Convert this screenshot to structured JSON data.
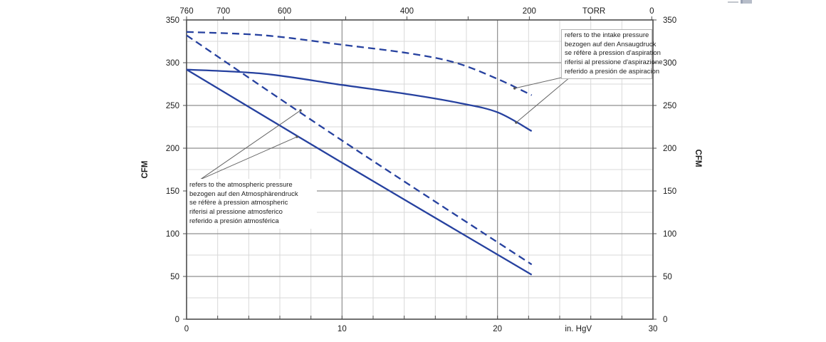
{
  "chart_data": {
    "type": "line",
    "title": "",
    "x_axis": {
      "label": "in. HgV",
      "label_pos": 25.2,
      "min": 0,
      "max": 30,
      "ticks": [
        0,
        10,
        20,
        30
      ],
      "minor_step": 2
    },
    "y_axis": {
      "label_left": "CFM",
      "label_right": "CFM",
      "min": 0,
      "max": 350,
      "major_step": 50,
      "minor_step": 25
    },
    "top_axis": {
      "label": "TORR",
      "label_pos": 26.2,
      "torr_max": 760,
      "torr_per_inhg": 25.4,
      "ticks_torr": [
        760,
        700,
        600,
        500,
        400,
        300,
        200,
        100,
        0
      ],
      "labeled_torr": [
        760,
        700,
        600,
        400,
        200,
        0
      ]
    },
    "grid": true,
    "legend": "none",
    "series": [
      {
        "name": "intake-pressure-dashed",
        "dash": true,
        "points": [
          [
            0,
            336
          ],
          [
            5,
            332
          ],
          [
            10,
            321
          ],
          [
            14.3,
            311
          ],
          [
            17.3,
            300
          ],
          [
            20,
            281
          ],
          [
            22.2,
            262
          ]
        ]
      },
      {
        "name": "intake-pressure-solid",
        "dash": false,
        "points": [
          [
            0,
            292
          ],
          [
            5,
            287
          ],
          [
            10,
            274
          ],
          [
            14.3,
            263
          ],
          [
            17.5,
            253
          ],
          [
            20,
            242
          ],
          [
            22.2,
            220
          ]
        ]
      },
      {
        "name": "atmospheric-pressure-dashed",
        "dash": true,
        "points": [
          [
            0,
            332
          ],
          [
            10,
            209
          ],
          [
            22.2,
            64
          ]
        ]
      },
      {
        "name": "atmospheric-pressure-solid",
        "dash": false,
        "points": [
          [
            0,
            292
          ],
          [
            10,
            183
          ],
          [
            22.2,
            52
          ]
        ]
      }
    ]
  },
  "annotations": {
    "intake": {
      "lines": [
        "refers to the intake pressure",
        "bezogen auf den Ansaugdruck",
        "se réfère à pression d'aspiration",
        "riferisi al pressione d'aspirazione",
        "referido a presión de aspiracion"
      ],
      "pointer": {
        "from": [
          24.83,
          285.5
        ],
        "to": [
          [
            21.1,
            270.0
          ],
          [
            21.2,
            230.0
          ]
        ]
      }
    },
    "atmospheric": {
      "lines": [
        "refers to the atmospheric pressure",
        "bezogen auf den Atmosphärendruck",
        "se réfère à pression atmospheric",
        "riferisi al pressione atmosferico",
        "referido a presión atmosférica"
      ],
      "pointer": {
        "from": [
          0.87,
          163.3
        ],
        "to": [
          [
            7.33,
            244.2
          ],
          [
            7.1,
            213.3
          ]
        ]
      }
    }
  },
  "colors": {
    "line": "#26419f",
    "grid_minor": "#d9d9d9",
    "grid_major": "#8f8f8f",
    "border": "#4d4d4d",
    "callout": "#666666",
    "text": "#1a1a1a"
  }
}
